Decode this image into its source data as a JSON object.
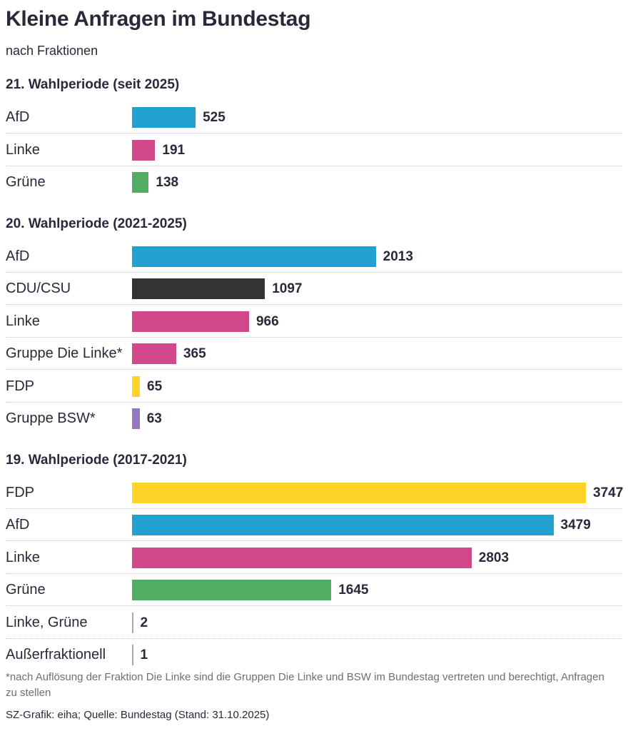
{
  "header": {
    "title": "Kleine Anfragen im Bundestag",
    "subtitle": "nach Fraktionen"
  },
  "colors": {
    "AfD": "#22a1ce",
    "Linke": "#d1488b",
    "Grüne": "#52ac62",
    "CDU/CSU": "#333333",
    "FDP": "#fdd528",
    "BSW": "#9676c2",
    "other": "#aaaaaa"
  },
  "chart_data": {
    "type": "bar",
    "orientation": "horizontal",
    "title": "Kleine Anfragen im Bundestag",
    "subtitle": "nach Fraktionen",
    "xlim": [
      0,
      3747
    ],
    "groups": [
      {
        "title": "21. Wahlperiode (seit 2025)",
        "rows": [
          {
            "label": "AfD",
            "value": 525,
            "color_key": "AfD"
          },
          {
            "label": "Linke",
            "value": 191,
            "color_key": "Linke"
          },
          {
            "label": "Grüne",
            "value": 138,
            "color_key": "Grüne"
          }
        ]
      },
      {
        "title": "20. Wahlperiode (2021-2025)",
        "rows": [
          {
            "label": "AfD",
            "value": 2013,
            "color_key": "AfD"
          },
          {
            "label": "CDU/CSU",
            "value": 1097,
            "color_key": "CDU/CSU"
          },
          {
            "label": "Linke",
            "value": 966,
            "color_key": "Linke"
          },
          {
            "label": "Gruppe Die Linke*",
            "value": 365,
            "color_key": "Linke"
          },
          {
            "label": "FDP",
            "value": 65,
            "color_key": "FDP"
          },
          {
            "label": "Gruppe BSW*",
            "value": 63,
            "color_key": "BSW"
          }
        ]
      },
      {
        "title": "19. Wahlperiode (2017-2021)",
        "rows": [
          {
            "label": "FDP",
            "value": 3747,
            "color_key": "FDP"
          },
          {
            "label": "AfD",
            "value": 3479,
            "color_key": "AfD"
          },
          {
            "label": "Linke",
            "value": 2803,
            "color_key": "Linke"
          },
          {
            "label": "Grüne",
            "value": 1645,
            "color_key": "Grüne"
          },
          {
            "label": "Linke, Grüne",
            "value": 2,
            "color_key": "other"
          },
          {
            "label": "Außerfraktionell",
            "value": 1,
            "color_key": "other"
          }
        ]
      }
    ]
  },
  "footer": {
    "footnote": "*nach Auflösung der Fraktion Die Linke sind die Gruppen Die Linke und BSW im Bundestag vertreten und berechtigt, Anfragen zu stellen",
    "source": "SZ-Grafik: eiha; Quelle: Bundestag (Stand: 31.10.2025)"
  }
}
